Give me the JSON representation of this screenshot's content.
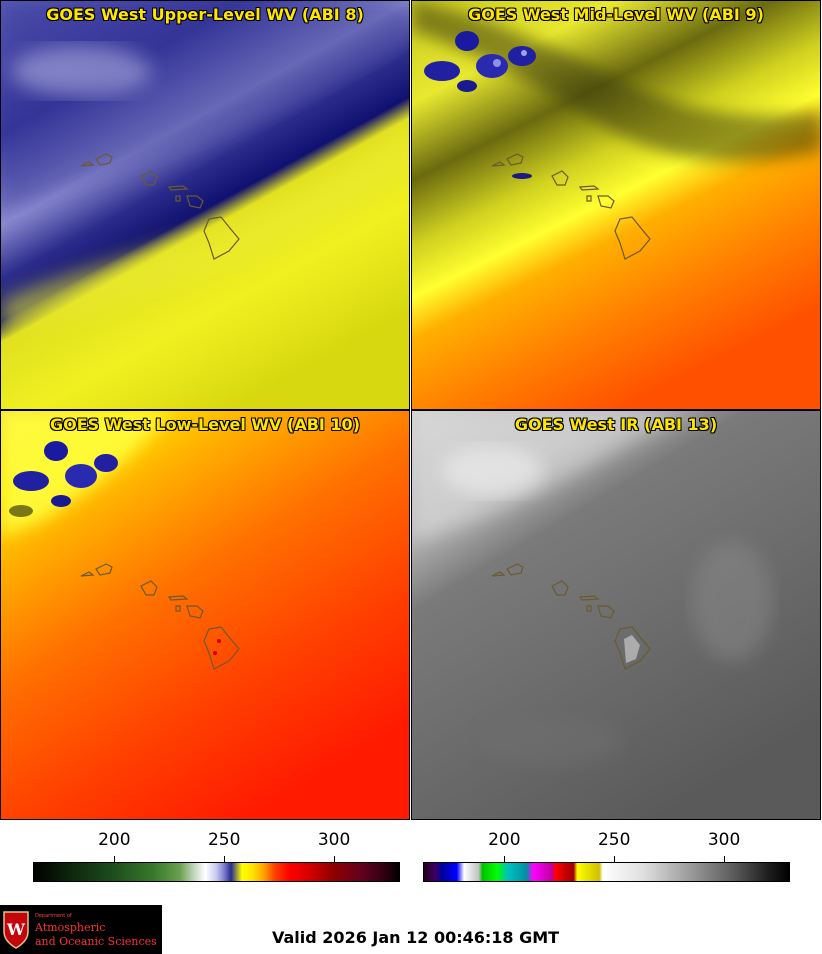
{
  "panels": [
    {
      "title": "GOES West Upper-Level WV (ABI 8)",
      "colormap": "wv"
    },
    {
      "title": "GOES West Mid-Level WV (ABI 9)",
      "colormap": "wv"
    },
    {
      "title": "GOES West Low-Level WV (ABI 10)",
      "colormap": "wv"
    },
    {
      "title": "GOES West IR (ABI 13)",
      "colormap": "ir"
    }
  ],
  "colorbars": [
    {
      "ticks": [
        "200",
        "250",
        "300"
      ],
      "tick_values": [
        200,
        250,
        300
      ],
      "range": [
        163,
        330
      ]
    },
    {
      "ticks": [
        "200",
        "250",
        "300"
      ],
      "tick_values": [
        200,
        250,
        300
      ],
      "range": [
        163,
        330
      ]
    }
  ],
  "footer": {
    "valid_time": "Valid 2026 Jan 12 00:46:18 GMT"
  },
  "logo": {
    "dept": "Department of",
    "line1": "Atmospheric",
    "line2": "and Oceanic Sciences",
    "crest_letter": "W"
  },
  "colors": {
    "title_text": "#ffe600",
    "coastline": "#6b5a2e",
    "logo_text": "#ff3030"
  }
}
